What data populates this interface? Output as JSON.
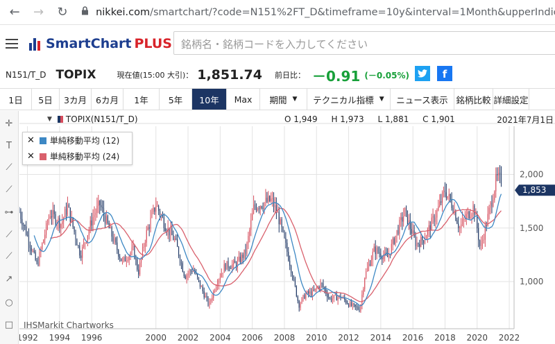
{
  "browser": {
    "back_icon": "arrow-left-icon",
    "forward_icon": "arrow-right-icon",
    "reload_icon": "reload-icon",
    "lock_icon": "lock-icon",
    "url_host": "nikkei.com",
    "url_path": "/smartchart/?code=N151%2FT_D&timeframe=10y&interval=1Month&upperIndicators"
  },
  "site": {
    "logo_text": "SmartChart",
    "logo_plus": "PLUS",
    "search_placeholder": "銘柄名・銘柄コードを入力してください",
    "logo_colors": [
      "#1d3e8f",
      "#1d3e8f",
      "#d8232a"
    ]
  },
  "quote": {
    "code": "N151/T_D",
    "name": "TOPIX",
    "price_label": "現在値(15:00 大引)：",
    "price": "1,851.74",
    "change_label": "前日比：",
    "change": "－0.91",
    "change_pct": "(－0.05%)",
    "change_color": "#18a03a"
  },
  "toolbar": {
    "items": [
      {
        "label": "1日",
        "caret": false,
        "active": false
      },
      {
        "label": "5日",
        "caret": false,
        "active": false
      },
      {
        "label": "3カ月",
        "caret": false,
        "active": false
      },
      {
        "label": "6カ月",
        "caret": false,
        "active": false
      },
      {
        "label": "1年",
        "caret": false,
        "active": false
      },
      {
        "label": "5年",
        "caret": false,
        "active": false
      },
      {
        "label": "10年",
        "caret": false,
        "active": true
      },
      {
        "label": "Max",
        "caret": false,
        "active": false
      },
      {
        "label": "期間",
        "caret": true,
        "active": false
      },
      {
        "label": "テクニカル指標",
        "caret": true,
        "active": false
      },
      {
        "label": "ニュース表示",
        "caret": false,
        "active": false
      },
      {
        "label": "銘柄比較",
        "caret": false,
        "active": false
      },
      {
        "label": "詳細設定",
        "caret": false,
        "active": false
      }
    ]
  },
  "tools": [
    {
      "name": "crosshair-icon",
      "glyph": "✛"
    },
    {
      "name": "text-tool-icon",
      "glyph": "T"
    },
    {
      "name": "line-tool-icon",
      "glyph": "⟋"
    },
    {
      "name": "channel-tool-icon",
      "glyph": "⟋"
    },
    {
      "name": "horizontal-line-icon",
      "glyph": "⊶"
    },
    {
      "name": "ray-tool-icon",
      "glyph": "⟋"
    },
    {
      "name": "polyline-tool-icon",
      "glyph": "⟋"
    },
    {
      "name": "arrow-tool-icon",
      "glyph": "↗"
    },
    {
      "name": "circle-tool-icon",
      "glyph": "○"
    },
    {
      "name": "rectangle-tool-icon",
      "glyph": "□"
    }
  ],
  "chart_header": {
    "series_label": "TOPIX(N151/T_D)",
    "open": "O 1,949",
    "high": "H 1,973",
    "low": "L 1,881",
    "close": "C 1,901",
    "date": "2021年7月1日"
  },
  "legend": {
    "items": [
      {
        "label": "単純移動平均 (12)",
        "color": "#3d88c4"
      },
      {
        "label": "単純移動平均 (24)",
        "color": "#d9606c"
      }
    ]
  },
  "watermark": "IHSMarkit Chartworks",
  "chart_data": {
    "type": "candlestick",
    "interval": "1 month",
    "y_ticks": [
      "2,000",
      "1,500",
      "1,000"
    ],
    "y_tick_values": [
      2000,
      1500,
      1000
    ],
    "ylim": [
      560,
      2450
    ],
    "xlim": [
      1991.5,
      2022.3
    ],
    "x_ticks": [
      "1992",
      "1994",
      "1996",
      "2000",
      "2002",
      "2004",
      "2006",
      "2008",
      "2010",
      "2012",
      "2014",
      "2016",
      "2018",
      "2020",
      "2022"
    ],
    "x_tick_values": [
      1992,
      1994,
      1996,
      2000,
      2002,
      2004,
      2006,
      2008,
      2010,
      2012,
      2014,
      2016,
      2018,
      2020,
      2022
    ],
    "current_value_label": "1,853",
    "current_value": 1853,
    "grid": true,
    "up_color": "#d64d5c",
    "down_color": "#1c3563",
    "sma12_color": "#3d88c4",
    "sma24_color": "#d9606c",
    "anchors": [
      [
        1991.5,
        1650
      ],
      [
        1992.1,
        1380
      ],
      [
        1992.6,
        1150
      ],
      [
        1993.4,
        1640
      ],
      [
        1994.1,
        1540
      ],
      [
        1994.5,
        1700
      ],
      [
        1995.3,
        1250
      ],
      [
        1996.1,
        1610
      ],
      [
        1996.5,
        1720
      ],
      [
        1997.2,
        1450
      ],
      [
        1997.9,
        1180
      ],
      [
        1998.6,
        1300
      ],
      [
        1998.9,
        1080
      ],
      [
        1999.4,
        1450
      ],
      [
        2000.0,
        1720
      ],
      [
        2000.6,
        1520
      ],
      [
        2001.2,
        1380
      ],
      [
        2001.8,
        1050
      ],
      [
        2002.3,
        1120
      ],
      [
        2003.3,
        780
      ],
      [
        2003.8,
        1000
      ],
      [
        2004.3,
        1150
      ],
      [
        2005.0,
        1160
      ],
      [
        2005.6,
        1280
      ],
      [
        2006.1,
        1700
      ],
      [
        2007.2,
        1760
      ],
      [
        2007.6,
        1620
      ],
      [
        2008.3,
        1200
      ],
      [
        2008.9,
        780
      ],
      [
        2009.3,
        880
      ],
      [
        2009.8,
        900
      ],
      [
        2010.3,
        980
      ],
      [
        2010.8,
        840
      ],
      [
        2011.5,
        860
      ],
      [
        2012.1,
        780
      ],
      [
        2012.7,
        740
      ],
      [
        2013.0,
        1050
      ],
      [
        2013.6,
        1300
      ],
      [
        2014.4,
        1220
      ],
      [
        2015.1,
        1500
      ],
      [
        2015.5,
        1650
      ],
      [
        2016.2,
        1350
      ],
      [
        2016.7,
        1400
      ],
      [
        2017.5,
        1650
      ],
      [
        2018.0,
        1850
      ],
      [
        2018.5,
        1700
      ],
      [
        2018.9,
        1500
      ],
      [
        2019.3,
        1600
      ],
      [
        2019.8,
        1700
      ],
      [
        2020.2,
        1300
      ],
      [
        2020.9,
        1750
      ],
      [
        2021.2,
        1960
      ],
      [
        2021.6,
        1950
      ],
      [
        2022.0,
        1880
      ]
    ]
  }
}
